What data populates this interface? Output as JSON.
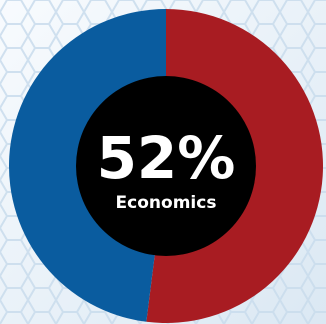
{
  "chart_data": {
    "type": "pie",
    "center_value": "52%",
    "center_label": "Economics",
    "slices": [
      {
        "name": "",
        "value": 52,
        "color": "#a81c22"
      },
      {
        "name": "",
        "value": 48,
        "color": "#0a5c9f"
      }
    ]
  },
  "colors": {
    "background_light": "#f3f7fb",
    "background_mid": "#dbe8f3",
    "pattern": "#c9dced",
    "center_fill": "#000000",
    "center_text": "#ffffff"
  }
}
